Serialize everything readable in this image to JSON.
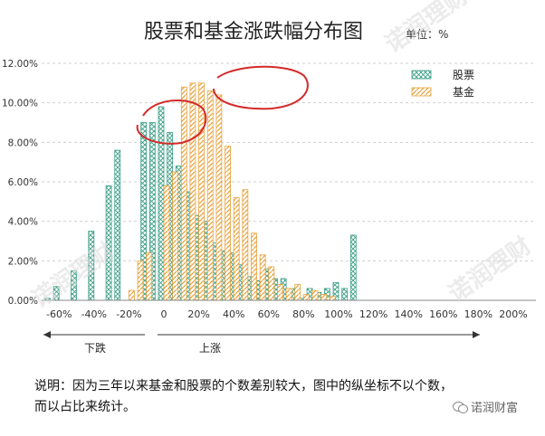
{
  "chart_data": {
    "type": "bar",
    "title": "股票和基金涨跌幅分布图",
    "unit_label": "单位：%",
    "categories": [
      "-65%",
      "-60%",
      "-55%",
      "-50%",
      "-45%",
      "-40%",
      "-35%",
      "-30%",
      "-25%",
      "-20%",
      "-15%",
      "-10%",
      "-5%",
      "0",
      "5%",
      "10%",
      "15%",
      "20%",
      "25%",
      "30%",
      "35%",
      "40%",
      "45%",
      "50%",
      "55%",
      "60%",
      "65%",
      "70%",
      "75%",
      "80%",
      "85%",
      "90%",
      "95%",
      "100%",
      "105%",
      "110%",
      "115%",
      "120%",
      "125%",
      "130%",
      "135%",
      "140%",
      "145%",
      "150%",
      "155%",
      "160%",
      "165%",
      "170%",
      "175%",
      "180%",
      "185%",
      "190%",
      "195%",
      "200%",
      "205%",
      "210%"
    ],
    "x_tick_labels": [
      "-60%",
      "-40%",
      "-20%",
      "0",
      "20%",
      "40%",
      "60%",
      "80%",
      "100%",
      "120%",
      "140%",
      "160%",
      "180%",
      "200%"
    ],
    "y_tick_labels": [
      "0.00%",
      "2.00%",
      "4.00%",
      "6.00%",
      "8.00%",
      "10.00%",
      "12.00%"
    ],
    "ylim": [
      0,
      12
    ],
    "grid": true,
    "legend_position": "top-right",
    "series": [
      {
        "name": "股票",
        "color": "#3a9e86",
        "values": [
          0.1,
          0.7,
          0,
          1.5,
          0,
          3.5,
          0,
          5.8,
          7.6,
          0,
          0,
          9.0,
          9.0,
          9.8,
          8.5,
          6.8,
          5.5,
          4.3,
          4.0,
          2.9,
          2.5,
          2.4,
          1.8,
          1.2,
          1.0,
          1.6,
          1.1,
          1.1,
          0.6,
          0.1,
          0.6,
          0.4,
          0.6,
          0.9,
          0.6,
          3.3,
          0,
          0,
          0,
          0,
          0,
          0,
          0,
          0,
          0,
          0,
          0,
          0,
          0,
          0,
          0,
          0,
          0,
          0,
          0,
          0
        ]
      },
      {
        "name": "基金",
        "color": "#e8a13a",
        "values": [
          0,
          0,
          0,
          0,
          0,
          0,
          0,
          0,
          0,
          0.5,
          2.0,
          2.4,
          0,
          5.8,
          6.5,
          10.8,
          11.0,
          11.0,
          10.6,
          10.4,
          7.8,
          5.2,
          5.6,
          3.4,
          2.3,
          1.7,
          0.8,
          0.6,
          0.8,
          0.3,
          0.5,
          0.3,
          0.2,
          0,
          0,
          0,
          0,
          0,
          0,
          0,
          0,
          0,
          0,
          0,
          0,
          0,
          0,
          0,
          0,
          0,
          0,
          0,
          0,
          0,
          0,
          0
        ]
      }
    ],
    "annotations": {
      "down_label": "下跌",
      "up_label": "上涨"
    }
  },
  "note": {
    "line1": "说明：因为三年以来基金和股票的个数差别较大，图中的纵坐标不以个数，",
    "line2": "而以占比来统计。"
  },
  "brand": {
    "name": "诺润财富"
  },
  "watermark": "诺润理财"
}
